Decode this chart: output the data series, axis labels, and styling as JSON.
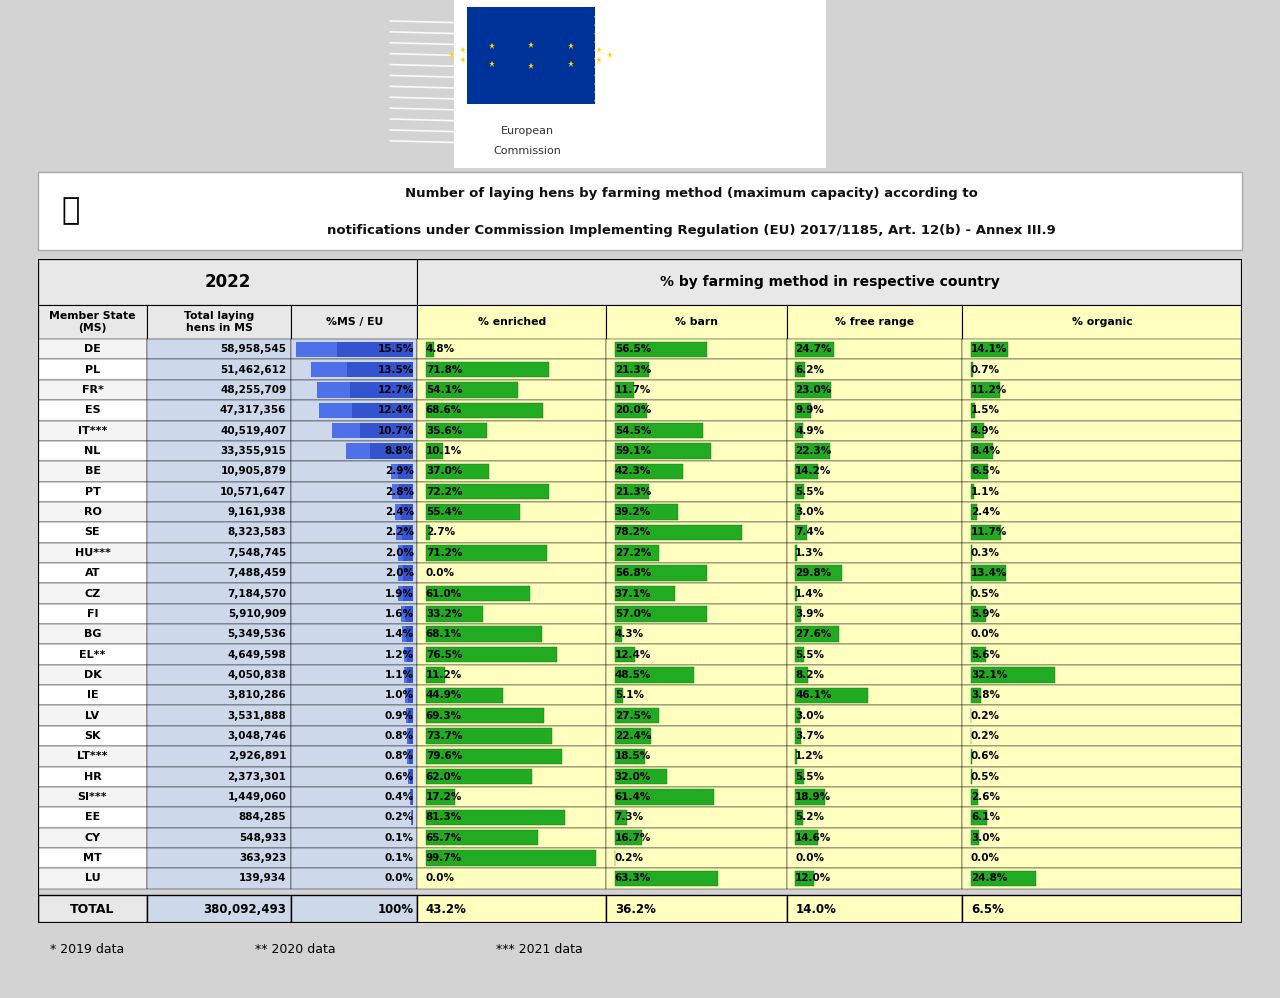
{
  "title_line1": "Number of laying hens by farming method (maximum capacity) according to",
  "title_line2": "notifications under Commission Implementing Regulation (EU) 2017/1185, Art. 12(b) - Annex III.9",
  "col_headers": [
    "Member State\n(MS)",
    "Total laying\nhens in MS",
    "%MS / EU",
    "% enriched",
    "% barn",
    "% free range",
    "% organic"
  ],
  "countries": [
    "DE",
    "PL",
    "FR*",
    "ES",
    "IT***",
    "NL",
    "BE",
    "PT",
    "RO",
    "SE",
    "HU***",
    "AT",
    "CZ",
    "FI",
    "BG",
    "EL**",
    "DK",
    "IE",
    "LV",
    "SK",
    "LT***",
    "HR",
    "SI***",
    "EE",
    "CY",
    "MT",
    "LU"
  ],
  "total_hens": [
    "58,958,545",
    "51,462,612",
    "48,255,709",
    "47,317,356",
    "40,519,407",
    "33,355,915",
    "10,905,879",
    "10,571,647",
    "9,161,938",
    "8,323,583",
    "7,548,745",
    "7,488,459",
    "7,184,570",
    "5,910,909",
    "5,349,536",
    "4,649,598",
    "4,050,838",
    "3,810,286",
    "3,531,888",
    "3,048,746",
    "2,926,891",
    "2,373,301",
    "1,449,060",
    "884,285",
    "548,933",
    "363,923",
    "139,934"
  ],
  "pct_ms_eu": [
    "15.5%",
    "13.5%",
    "12.7%",
    "12.4%",
    "10.7%",
    "8.8%",
    "2.9%",
    "2.8%",
    "2.4%",
    "2.2%",
    "2.0%",
    "2.0%",
    "1.9%",
    "1.6%",
    "1.4%",
    "1.2%",
    "1.1%",
    "1.0%",
    "0.9%",
    "0.8%",
    "0.8%",
    "0.6%",
    "0.4%",
    "0.2%",
    "0.1%",
    "0.1%",
    "0.0%"
  ],
  "pct_ms_eu_val": [
    15.5,
    13.5,
    12.7,
    12.4,
    10.7,
    8.8,
    2.9,
    2.8,
    2.4,
    2.2,
    2.0,
    2.0,
    1.9,
    1.6,
    1.4,
    1.2,
    1.1,
    1.0,
    0.9,
    0.8,
    0.8,
    0.6,
    0.4,
    0.2,
    0.1,
    0.1,
    0.0
  ],
  "pct_enriched": [
    "4.8%",
    "71.8%",
    "54.1%",
    "68.6%",
    "35.6%",
    "10.1%",
    "37.0%",
    "72.2%",
    "55.4%",
    "2.7%",
    "71.2%",
    "0.0%",
    "61.0%",
    "33.2%",
    "68.1%",
    "76.5%",
    "11.2%",
    "44.9%",
    "69.3%",
    "73.7%",
    "79.6%",
    "62.0%",
    "17.2%",
    "81.3%",
    "65.7%",
    "99.7%",
    "0.0%"
  ],
  "pct_enriched_val": [
    4.8,
    71.8,
    54.1,
    68.6,
    35.6,
    10.1,
    37.0,
    72.2,
    55.4,
    2.7,
    71.2,
    0.0,
    61.0,
    33.2,
    68.1,
    76.5,
    11.2,
    44.9,
    69.3,
    73.7,
    79.6,
    62.0,
    17.2,
    81.3,
    65.7,
    99.7,
    0.0
  ],
  "pct_barn": [
    "56.5%",
    "21.3%",
    "11.7%",
    "20.0%",
    "54.5%",
    "59.1%",
    "42.3%",
    "21.3%",
    "39.2%",
    "78.2%",
    "27.2%",
    "56.8%",
    "37.1%",
    "57.0%",
    "4.3%",
    "12.4%",
    "48.5%",
    "5.1%",
    "27.5%",
    "22.4%",
    "18.5%",
    "32.0%",
    "61.4%",
    "7.3%",
    "16.7%",
    "0.2%",
    "63.3%"
  ],
  "pct_barn_val": [
    56.5,
    21.3,
    11.7,
    20.0,
    54.5,
    59.1,
    42.3,
    21.3,
    39.2,
    78.2,
    27.2,
    56.8,
    37.1,
    57.0,
    4.3,
    12.4,
    48.5,
    5.1,
    27.5,
    22.4,
    18.5,
    32.0,
    61.4,
    7.3,
    16.7,
    0.2,
    63.3
  ],
  "pct_freerange": [
    "24.7%",
    "6.2%",
    "23.0%",
    "9.9%",
    "4.9%",
    "22.3%",
    "14.2%",
    "5.5%",
    "3.0%",
    "7.4%",
    "1.3%",
    "29.8%",
    "1.4%",
    "3.9%",
    "27.6%",
    "5.5%",
    "8.2%",
    "46.1%",
    "3.0%",
    "3.7%",
    "1.2%",
    "5.5%",
    "18.9%",
    "5.2%",
    "14.6%",
    "0.0%",
    "12.0%"
  ],
  "pct_freerange_val": [
    24.7,
    6.2,
    23.0,
    9.9,
    4.9,
    22.3,
    14.2,
    5.5,
    3.0,
    7.4,
    1.3,
    29.8,
    1.4,
    3.9,
    27.6,
    5.5,
    8.2,
    46.1,
    3.0,
    3.7,
    1.2,
    5.5,
    18.9,
    5.2,
    14.6,
    0.0,
    12.0
  ],
  "pct_organic": [
    "14.1%",
    "0.7%",
    "11.2%",
    "1.5%",
    "4.9%",
    "8.4%",
    "6.5%",
    "1.1%",
    "2.4%",
    "11.7%",
    "0.3%",
    "13.4%",
    "0.5%",
    "5.9%",
    "0.0%",
    "5.6%",
    "32.1%",
    "3.8%",
    "0.2%",
    "0.2%",
    "0.6%",
    "0.5%",
    "2.6%",
    "6.1%",
    "3.0%",
    "0.0%",
    "24.8%"
  ],
  "pct_organic_val": [
    14.1,
    0.7,
    11.2,
    1.5,
    4.9,
    8.4,
    6.5,
    1.1,
    2.4,
    11.7,
    0.3,
    13.4,
    0.5,
    5.9,
    0.0,
    5.6,
    32.1,
    3.8,
    0.2,
    0.2,
    0.6,
    0.5,
    2.6,
    6.1,
    3.0,
    0.0,
    24.8
  ],
  "total_row": [
    "TOTAL",
    "380,092,493",
    "100%",
    "43.2%",
    "36.2%",
    "14.0%",
    "6.5%"
  ],
  "footnote1": "* 2019 data",
  "footnote2": "** 2020 data",
  "footnote3": "*** 2021 data",
  "bg_color": "#d3d3d3"
}
